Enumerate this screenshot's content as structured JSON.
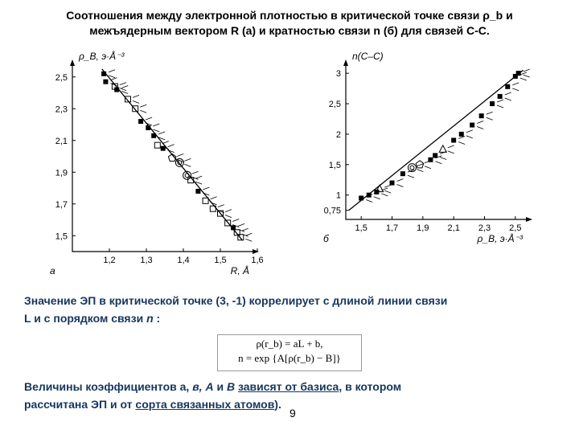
{
  "title": "Соотношения между электронной плотностью в критической точке связи ρ_b и межъядерным вектором R (а) и кратностью связи n (б) для связей С-С.",
  "chartA": {
    "ylabel": "ρ_B, э·Å⁻³",
    "xlabel": "R, Å",
    "panel_label": "а",
    "xlim": [
      1.1,
      1.6
    ],
    "xticks": [
      1.2,
      1.3,
      1.4,
      1.5,
      1.6
    ],
    "ylim": [
      1.4,
      2.6
    ],
    "yticks": [
      1.5,
      1.7,
      1.9,
      2.1,
      2.3,
      2.5
    ],
    "line": {
      "x1": 1.18,
      "y1": 2.55,
      "x2": 1.56,
      "y2": 1.47
    },
    "points": [
      {
        "x": 1.185,
        "y": 2.52,
        "m": "sq"
      },
      {
        "x": 1.19,
        "y": 2.47,
        "m": "sq"
      },
      {
        "x": 1.215,
        "y": 2.44,
        "m": "sqo"
      },
      {
        "x": 1.22,
        "y": 2.42,
        "m": "sq"
      },
      {
        "x": 1.25,
        "y": 2.36,
        "m": "sqo"
      },
      {
        "x": 1.27,
        "y": 2.3,
        "m": "sqo"
      },
      {
        "x": 1.285,
        "y": 2.22,
        "m": "sq"
      },
      {
        "x": 1.305,
        "y": 2.18,
        "m": "sq"
      },
      {
        "x": 1.32,
        "y": 2.13,
        "m": "sq"
      },
      {
        "x": 1.33,
        "y": 2.07,
        "m": "sqo"
      },
      {
        "x": 1.345,
        "y": 2.05,
        "m": "sq"
      },
      {
        "x": 1.37,
        "y": 1.99,
        "m": "penta"
      },
      {
        "x": 1.39,
        "y": 1.96,
        "m": "cc"
      },
      {
        "x": 1.41,
        "y": 1.88,
        "m": "cc"
      },
      {
        "x": 1.42,
        "y": 1.85,
        "m": "sqo"
      },
      {
        "x": 1.44,
        "y": 1.78,
        "m": "sq"
      },
      {
        "x": 1.46,
        "y": 1.72,
        "m": "sqo"
      },
      {
        "x": 1.48,
        "y": 1.67,
        "m": "sqo"
      },
      {
        "x": 1.5,
        "y": 1.64,
        "m": "sqo"
      },
      {
        "x": 1.52,
        "y": 1.58,
        "m": "sqo"
      },
      {
        "x": 1.535,
        "y": 1.55,
        "m": "sq"
      },
      {
        "x": 1.545,
        "y": 1.52,
        "m": "sqo"
      },
      {
        "x": 1.555,
        "y": 1.49,
        "m": "sqo"
      }
    ],
    "axis_color": "#000",
    "grid_color": "#000",
    "bg": "#ffffff",
    "tick_fontsize": 11,
    "label_fontsize": 12
  },
  "chartB": {
    "ylabel": "n(C–C)",
    "xlabel": "ρ_B, э·Å⁻³",
    "panel_label": "б",
    "xlim": [
      1.4,
      2.6
    ],
    "xticks": [
      1.5,
      1.7,
      1.9,
      2.1,
      2.3,
      2.5
    ],
    "ylim": [
      0.6,
      3.2
    ],
    "yticks": [
      0.75,
      1,
      1.5,
      2,
      2.5,
      3
    ],
    "line": {
      "x1": 1.42,
      "y1": 0.75,
      "x2": 2.55,
      "y2": 3.05
    },
    "points": [
      {
        "x": 1.5,
        "y": 0.95,
        "m": "sq"
      },
      {
        "x": 1.55,
        "y": 1.0,
        "m": "sq"
      },
      {
        "x": 1.6,
        "y": 1.05,
        "m": "sq"
      },
      {
        "x": 1.62,
        "y": 1.1,
        "m": "tri"
      },
      {
        "x": 1.7,
        "y": 1.2,
        "m": "sq"
      },
      {
        "x": 1.77,
        "y": 1.35,
        "m": "sq"
      },
      {
        "x": 1.83,
        "y": 1.45,
        "m": "cc"
      },
      {
        "x": 1.88,
        "y": 1.5,
        "m": "penta"
      },
      {
        "x": 1.95,
        "y": 1.58,
        "m": "sq"
      },
      {
        "x": 1.98,
        "y": 1.65,
        "m": "sq"
      },
      {
        "x": 2.03,
        "y": 1.75,
        "m": "tri"
      },
      {
        "x": 2.1,
        "y": 1.9,
        "m": "sq"
      },
      {
        "x": 2.15,
        "y": 2.0,
        "m": "sq"
      },
      {
        "x": 2.22,
        "y": 2.15,
        "m": "sq"
      },
      {
        "x": 2.28,
        "y": 2.3,
        "m": "sq"
      },
      {
        "x": 2.35,
        "y": 2.5,
        "m": "sq"
      },
      {
        "x": 2.4,
        "y": 2.62,
        "m": "sq"
      },
      {
        "x": 2.45,
        "y": 2.78,
        "m": "sq"
      },
      {
        "x": 2.5,
        "y": 2.95,
        "m": "sq"
      },
      {
        "x": 2.52,
        "y": 3.0,
        "m": "sq"
      }
    ],
    "axis_color": "#000",
    "bg": "#ffffff",
    "tick_fontsize": 11,
    "label_fontsize": 12
  },
  "text1_a": "Значение ЭП в критической точке (3, -1) коррелирует с длиной линии связи",
  "text1_b": "L и с порядком связи ",
  "text1_n": "n",
  "text1_c": " :",
  "formula_l1": "ρ(r_b) = aL + b,",
  "formula_l2": "n = exp {A[ρ(r_b) − B]}",
  "text2_a": "Величины коэффициентов а, ",
  "text2_b": "в, А",
  "text2_c": " и ",
  "text2_d": "В",
  "text2_e": " ",
  "text2_u1": "зависят от базиса",
  "text2_f": ", в котором",
  "text2_g": "рассчитана ЭП и от ",
  "text2_u2": "сорта связанных атомов",
  "text2_h": ").",
  "page_number": "9"
}
